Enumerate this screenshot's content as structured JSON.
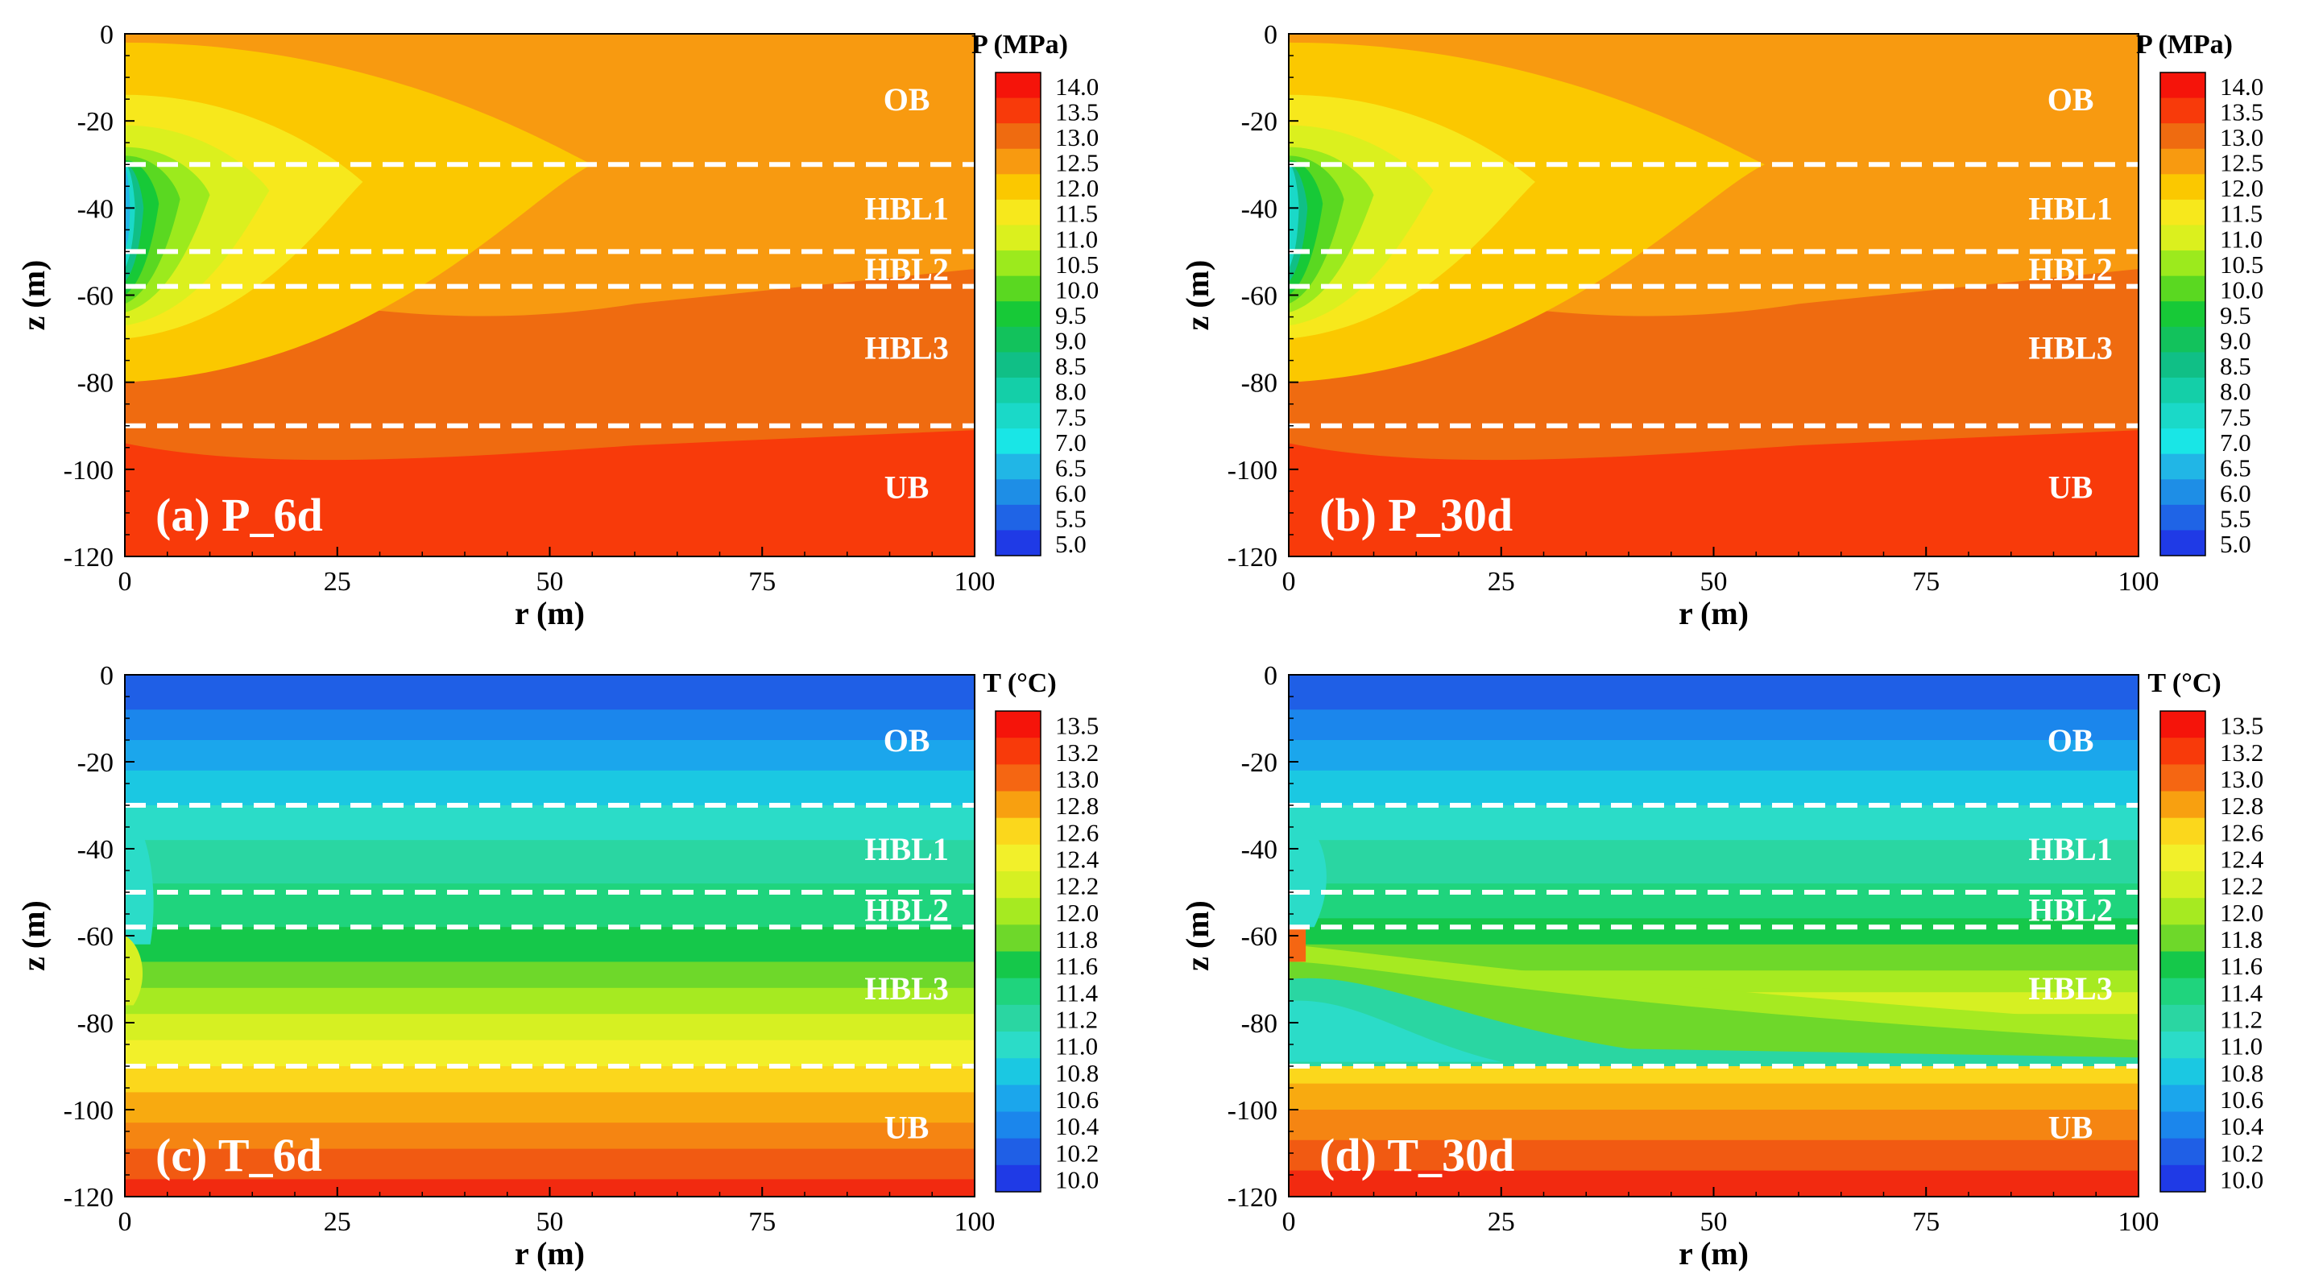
{
  "figure": {
    "description_note": "",
    "panels_layout": "2x2"
  },
  "chart_data": [
    {
      "type": "heatmap",
      "id": "a",
      "panel_label": "(a) P_6d",
      "xlabel": "r (m)",
      "ylabel": "z (m)",
      "xlim": [
        0,
        100
      ],
      "ylim": [
        -120,
        0
      ],
      "xticks": [
        "0",
        "25",
        "50",
        "75",
        "100"
      ],
      "yticks": [
        "0",
        "-20",
        "-40",
        "-60",
        "-80",
        "-100",
        "-120"
      ],
      "colorbar": {
        "title": "P (MPa)",
        "labels": [
          "14.0",
          "13.5",
          "13.0",
          "12.5",
          "12.0",
          "11.5",
          "11.0",
          "10.5",
          "10.0",
          "9.5",
          "9.0",
          "8.5",
          "8.0",
          "7.5",
          "7.0",
          "6.5",
          "6.0",
          "5.5",
          "5.0"
        ]
      },
      "layer_boundaries_z": [
        -30,
        -50,
        -58,
        -90
      ],
      "layers": [
        {
          "name": "OB",
          "z": -15
        },
        {
          "name": "HBL1",
          "z": -40
        },
        {
          "name": "HBL2",
          "z": -54
        },
        {
          "name": "HBL3",
          "z": -72
        },
        {
          "name": "UB",
          "z": -104
        }
      ],
      "fill_levels": [
        {
          "value": 13.5,
          "color": "#ef6b10",
          "z_top": -51,
          "z_mid": -70,
          "z_right": -54
        },
        {
          "value": 14.0,
          "color": "#f83a0a",
          "z_top": -92,
          "z_mid": -98,
          "z_right": -91
        }
      ],
      "bubble_levels": [
        {
          "value": 12.5,
          "color": "#fbc800",
          "r_max": 55,
          "z_top": -2,
          "z_bot": -80,
          "z_apex": -30
        },
        {
          "value": 12.0,
          "color": "#f7e81c",
          "r_max": 28,
          "z_top": -14,
          "z_bot": -70,
          "z_apex": -34
        },
        {
          "value": 11.5,
          "color": "#dbf01e",
          "r_max": 17,
          "z_top": -21,
          "z_bot": -67,
          "z_apex": -36
        },
        {
          "value": 11.0,
          "color": "#9cea1d",
          "r_max": 10,
          "z_top": -26,
          "z_bot": -64,
          "z_apex": -37
        },
        {
          "value": 10.5,
          "color": "#5ad821",
          "r_max": 6.5,
          "z_top": -28,
          "z_bot": -62,
          "z_apex": -38
        },
        {
          "value": 10.0,
          "color": "#17c937",
          "r_max": 4,
          "z_top": -29,
          "z_bot": -60,
          "z_apex": -39
        },
        {
          "value": 9.0,
          "color": "#10bf86",
          "r_max": 2.2,
          "z_top": -30,
          "z_bot": -57,
          "z_apex": -40
        },
        {
          "value": 8.0,
          "color": "#1ad9c8",
          "r_max": 1.2,
          "z_top": -30,
          "z_bot": -54,
          "z_apex": -40
        },
        {
          "value": 7.0,
          "color": "#21b6e6",
          "r_max": 0.6,
          "z_top": -31,
          "z_bot": -50,
          "z_apex": -40
        }
      ]
    },
    {
      "type": "heatmap",
      "id": "b",
      "panel_label": "(b) P_30d",
      "xlabel": "r (m)",
      "ylabel": "z (m)",
      "xlim": [
        0,
        100
      ],
      "ylim": [
        -120,
        0
      ],
      "xticks": [
        "0",
        "25",
        "50",
        "75",
        "100"
      ],
      "yticks": [
        "0",
        "-20",
        "-40",
        "-60",
        "-80",
        "-100",
        "-120"
      ],
      "colorbar": {
        "title": "P (MPa)",
        "labels": [
          "14.0",
          "13.5",
          "13.0",
          "12.5",
          "12.0",
          "11.5",
          "11.0",
          "10.5",
          "10.0",
          "9.5",
          "9.0",
          "8.5",
          "8.0",
          "7.5",
          "7.0",
          "6.5",
          "6.0",
          "5.5",
          "5.0"
        ]
      },
      "layer_boundaries_z": [
        -30,
        -50,
        -58,
        -90
      ],
      "layers": [
        {
          "name": "OB",
          "z": -15
        },
        {
          "name": "HBL1",
          "z": -40
        },
        {
          "name": "HBL2",
          "z": -54
        },
        {
          "name": "HBL3",
          "z": -72
        },
        {
          "name": "UB",
          "z": -104
        }
      ],
      "fill_levels": [
        {
          "value": 13.5,
          "color": "#ef6b10",
          "z_top": -51,
          "z_mid": -70,
          "z_right": -54
        },
        {
          "value": 14.0,
          "color": "#f83a0a",
          "z_top": -92,
          "z_mid": -98,
          "z_right": -91
        }
      ],
      "bubble_levels": [
        {
          "value": 12.5,
          "color": "#fbc800",
          "r_max": 56,
          "z_top": -2,
          "z_bot": -80,
          "z_apex": -30
        },
        {
          "value": 12.0,
          "color": "#f7e81c",
          "r_max": 29,
          "z_top": -14,
          "z_bot": -70,
          "z_apex": -34
        },
        {
          "value": 11.5,
          "color": "#dbf01e",
          "r_max": 17,
          "z_top": -21,
          "z_bot": -67,
          "z_apex": -36
        },
        {
          "value": 11.0,
          "color": "#9cea1d",
          "r_max": 10,
          "z_top": -26,
          "z_bot": -64,
          "z_apex": -37
        },
        {
          "value": 10.5,
          "color": "#5ad821",
          "r_max": 6.5,
          "z_top": -28,
          "z_bot": -62,
          "z_apex": -38
        },
        {
          "value": 10.0,
          "color": "#17c937",
          "r_max": 4,
          "z_top": -29,
          "z_bot": -60,
          "z_apex": -39
        },
        {
          "value": 9.0,
          "color": "#10bf86",
          "r_max": 2.2,
          "z_top": -30,
          "z_bot": -57,
          "z_apex": -40
        },
        {
          "value": 8.0,
          "color": "#1ad9c8",
          "r_max": 1.2,
          "z_top": -30,
          "z_bot": -54,
          "z_apex": -40
        }
      ]
    },
    {
      "type": "heatmap",
      "id": "c",
      "panel_label": "(c) T_6d",
      "xlabel": "r (m)",
      "ylabel": "z (m)",
      "xlim": [
        0,
        100
      ],
      "ylim": [
        -120,
        0
      ],
      "xticks": [
        "0",
        "25",
        "50",
        "75",
        "100"
      ],
      "yticks": [
        "0",
        "-20",
        "-40",
        "-60",
        "-80",
        "-100",
        "-120"
      ],
      "colorbar": {
        "title": "T (°C)",
        "labels": [
          "13.5",
          "13.2",
          "13.0",
          "12.8",
          "12.6",
          "12.4",
          "12.2",
          "12.0",
          "11.8",
          "11.6",
          "11.4",
          "11.2",
          "11.0",
          "10.8",
          "10.6",
          "10.4",
          "10.2",
          "10.0"
        ]
      },
      "layer_boundaries_z": [
        -30,
        -50,
        -58,
        -90
      ],
      "layers": [
        {
          "name": "OB",
          "z": -15
        },
        {
          "name": "HBL1",
          "z": -40
        },
        {
          "name": "HBL2",
          "z": -54
        },
        {
          "name": "HBL3",
          "z": -72
        },
        {
          "name": "UB",
          "z": -104
        }
      ],
      "horizontal_bands": [
        {
          "z_top": 0,
          "z_bot": -8,
          "color": "#1f5fe6",
          "value": 10.4
        },
        {
          "z_top": -8,
          "z_bot": -15,
          "color": "#1b86ec",
          "value": 10.6
        },
        {
          "z_top": -15,
          "z_bot": -22,
          "color": "#1ba6ec",
          "value": 10.8
        },
        {
          "z_top": -22,
          "z_bot": -30,
          "color": "#1bc8e2",
          "value": 11.0
        },
        {
          "z_top": -30,
          "z_bot": -38,
          "color": "#2bdcc8",
          "value": 11.2
        },
        {
          "z_top": -38,
          "z_bot": -48,
          "color": "#2ad6a2",
          "value": 11.4
        },
        {
          "z_top": -48,
          "z_bot": -58,
          "color": "#1fd47d",
          "value": 11.6
        },
        {
          "z_top": -58,
          "z_bot": -66,
          "color": "#15c84a",
          "value": 11.8
        },
        {
          "z_top": -66,
          "z_bot": -72,
          "color": "#6ed82a",
          "value": 12.0
        },
        {
          "z_top": -72,
          "z_bot": -78,
          "color": "#a6ea21",
          "value": 12.2
        },
        {
          "z_top": -78,
          "z_bot": -84,
          "color": "#d6f022",
          "value": 12.4
        },
        {
          "z_top": -84,
          "z_bot": -90,
          "color": "#f2f02a",
          "value": 12.6
        },
        {
          "z_top": -90,
          "z_bot": -96,
          "color": "#fbd71c",
          "value": 12.8
        },
        {
          "z_top": -96,
          "z_bot": -103,
          "color": "#f8aa10",
          "value": 13.0
        },
        {
          "z_top": -103,
          "z_bot": -109,
          "color": "#f58512",
          "value": 13.2
        },
        {
          "z_top": -109,
          "z_bot": -116,
          "color": "#f15a12",
          "value": 13.5
        },
        {
          "z_top": -116,
          "z_bot": -120,
          "color": "#f22a10",
          "value": 13.6
        }
      ]
    },
    {
      "type": "heatmap",
      "id": "d",
      "panel_label": "(d) T_30d",
      "xlabel": "r (m)",
      "ylabel": "z (m)",
      "xlim": [
        0,
        100
      ],
      "ylim": [
        -120,
        0
      ],
      "xticks": [
        "0",
        "25",
        "50",
        "75",
        "100"
      ],
      "yticks": [
        "0",
        "-20",
        "-40",
        "-60",
        "-80",
        "-100",
        "-120"
      ],
      "colorbar": {
        "title": "T (°C)",
        "labels": [
          "13.5",
          "13.2",
          "13.0",
          "12.8",
          "12.6",
          "12.4",
          "12.2",
          "12.0",
          "11.8",
          "11.6",
          "11.4",
          "11.2",
          "11.0",
          "10.8",
          "10.6",
          "10.4",
          "10.2",
          "10.0"
        ]
      },
      "layer_boundaries_z": [
        -30,
        -50,
        -58,
        -90
      ],
      "layers": [
        {
          "name": "OB",
          "z": -15
        },
        {
          "name": "HBL1",
          "z": -40
        },
        {
          "name": "HBL2",
          "z": -54
        },
        {
          "name": "HBL3",
          "z": -72
        },
        {
          "name": "UB",
          "z": -104
        }
      ],
      "horizontal_bands": [
        {
          "z_top": 0,
          "z_bot": -8,
          "color": "#1f5fe6",
          "value": 10.4
        },
        {
          "z_top": -8,
          "z_bot": -15,
          "color": "#1b86ec",
          "value": 10.6
        },
        {
          "z_top": -15,
          "z_bot": -22,
          "color": "#1ba6ec",
          "value": 10.8
        },
        {
          "z_top": -22,
          "z_bot": -30,
          "color": "#1bc8e2",
          "value": 11.0
        },
        {
          "z_top": -30,
          "z_bot": -38,
          "color": "#2bdcc8",
          "value": 11.2
        },
        {
          "z_top": -38,
          "z_bot": -48,
          "color": "#2ad6a2",
          "value": 11.4
        },
        {
          "z_top": -48,
          "z_bot": -56,
          "color": "#1fd47d",
          "value": 11.6
        },
        {
          "z_top": -56,
          "z_bot": -62,
          "color": "#15c84a",
          "value": 11.8
        },
        {
          "z_top": -62,
          "z_bot": -68,
          "color": "#6ed82a",
          "value": 12.0
        },
        {
          "z_top": -68,
          "z_bot": -73,
          "color": "#a6ea21",
          "value": 12.2
        },
        {
          "z_top": -73,
          "z_bot": -78,
          "color": "#d6f022",
          "value": 12.4
        },
        {
          "z_top": -78,
          "z_bot": -84,
          "color": "#a6ea21",
          "value": 12.2
        },
        {
          "z_top": -84,
          "z_bot": -90,
          "color": "#6ed82a",
          "value": 12.0
        },
        {
          "z_top": -90,
          "z_bot": -94,
          "color": "#fbd71c",
          "value": 12.8
        },
        {
          "z_top": -94,
          "z_bot": -100,
          "color": "#f8aa10",
          "value": 13.0
        },
        {
          "z_top": -100,
          "z_bot": -107,
          "color": "#f58512",
          "value": 13.2
        },
        {
          "z_top": -107,
          "z_bot": -114,
          "color": "#f15a12",
          "value": 13.5
        },
        {
          "z_top": -114,
          "z_bot": -120,
          "color": "#f22a10",
          "value": 13.6
        }
      ]
    }
  ],
  "colorbar_colors": {
    "pressure": [
      "#f5140a",
      "#f83a0a",
      "#ef6b10",
      "#f89a10",
      "#fbc800",
      "#f7e81c",
      "#dbf01e",
      "#9cea1d",
      "#5ad821",
      "#17c937",
      "#12c25c",
      "#10bf86",
      "#14cfa8",
      "#1ad9c8",
      "#19e6e6",
      "#21b6e6",
      "#1e8ee6",
      "#1f64e6",
      "#1f3ae6"
    ],
    "temperature": [
      "#f5140a",
      "#f83a0a",
      "#f56612",
      "#f8a010",
      "#fbd71c",
      "#f2f02a",
      "#d6f022",
      "#a6ea21",
      "#6ed82a",
      "#15c84a",
      "#1fd47d",
      "#2ad6a2",
      "#2bdcc8",
      "#1bc8e2",
      "#1ba6ec",
      "#1b86ec",
      "#1f5fe6",
      "#1f3ae6"
    ]
  },
  "colors": {
    "boundary_line": "#ffffff",
    "layer_text": "#ffffff",
    "axis": "#000000"
  }
}
